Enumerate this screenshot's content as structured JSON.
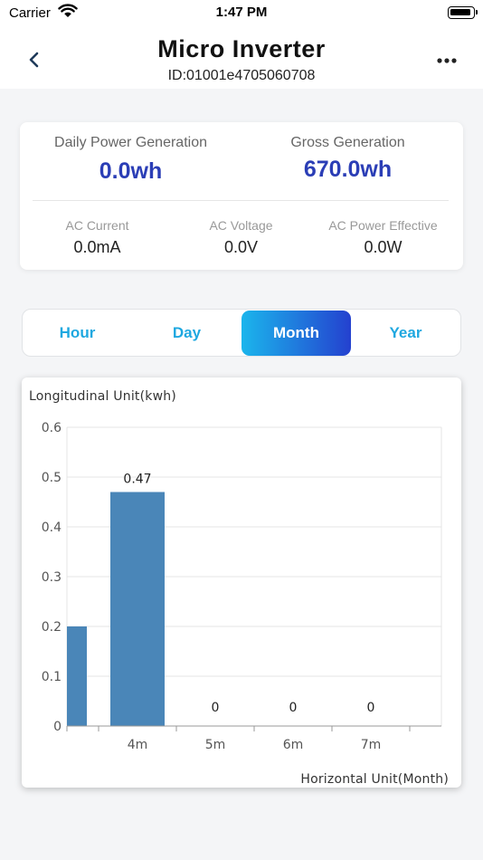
{
  "status_bar": {
    "carrier": "Carrier",
    "time": "1:47 PM"
  },
  "header": {
    "title": "Micro Inverter",
    "device_id": "ID:01001e4705060708"
  },
  "summary": {
    "daily": {
      "label": "Daily Power Generation",
      "value": "0.0wh"
    },
    "gross": {
      "label": "Gross Generation",
      "value": "670.0wh"
    },
    "ac_current": {
      "label": "AC Current",
      "value": "0.0mA"
    },
    "ac_voltage": {
      "label": "AC Voltage",
      "value": "0.0V"
    },
    "ac_power": {
      "label": "AC Power Effective",
      "value": "0.0W"
    }
  },
  "tabs": [
    {
      "label": "Hour",
      "active": false
    },
    {
      "label": "Day",
      "active": false
    },
    {
      "label": "Month",
      "active": true
    },
    {
      "label": "Year",
      "active": false
    }
  ],
  "colors": {
    "accent": "#2b3eb6",
    "tab_text": "#1fa8e0",
    "bar": "#4a86b8"
  },
  "chart_data": {
    "type": "bar",
    "ylabel": "Longitudinal Unit(kwh)",
    "xlabel": "Horizontal Unit(Month)",
    "ylim": [
      0,
      0.6
    ],
    "yticks": [
      "0",
      "0.1",
      "0.2",
      "0.3",
      "0.4",
      "0.5",
      "0.6"
    ],
    "categories": [
      "",
      "4m",
      "5m",
      "6m",
      "7m"
    ],
    "values": [
      0.2,
      0.47,
      0,
      0,
      0
    ],
    "data_labels": [
      "",
      "0.47",
      "0",
      "0",
      "0"
    ],
    "grid": true
  }
}
